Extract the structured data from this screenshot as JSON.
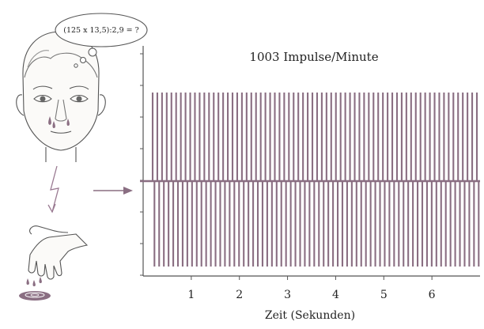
{
  "thought": "(125 x 13,5):2,9 = ?",
  "colors": {
    "signal": "#8a6e82",
    "line": "#555555",
    "skin": "#fbfaf8",
    "accent": "#9a7a92"
  },
  "icons": [
    "head-icon",
    "lightning-icon",
    "hand-icon",
    "sweat-drops-icon",
    "puddle-icon",
    "arrow-right-icon"
  ],
  "chart_data": {
    "type": "line",
    "title": "1003 Impulse/Minute",
    "xlabel": "Zeit (Sekunden)",
    "ylabel": "",
    "x_ticks": [
      1,
      2,
      3,
      4,
      5,
      6
    ],
    "xlim": [
      0,
      7
    ],
    "pulse_count": 70,
    "series": [
      {
        "values": [
          1,
          -1
        ]
      }
    ]
  }
}
